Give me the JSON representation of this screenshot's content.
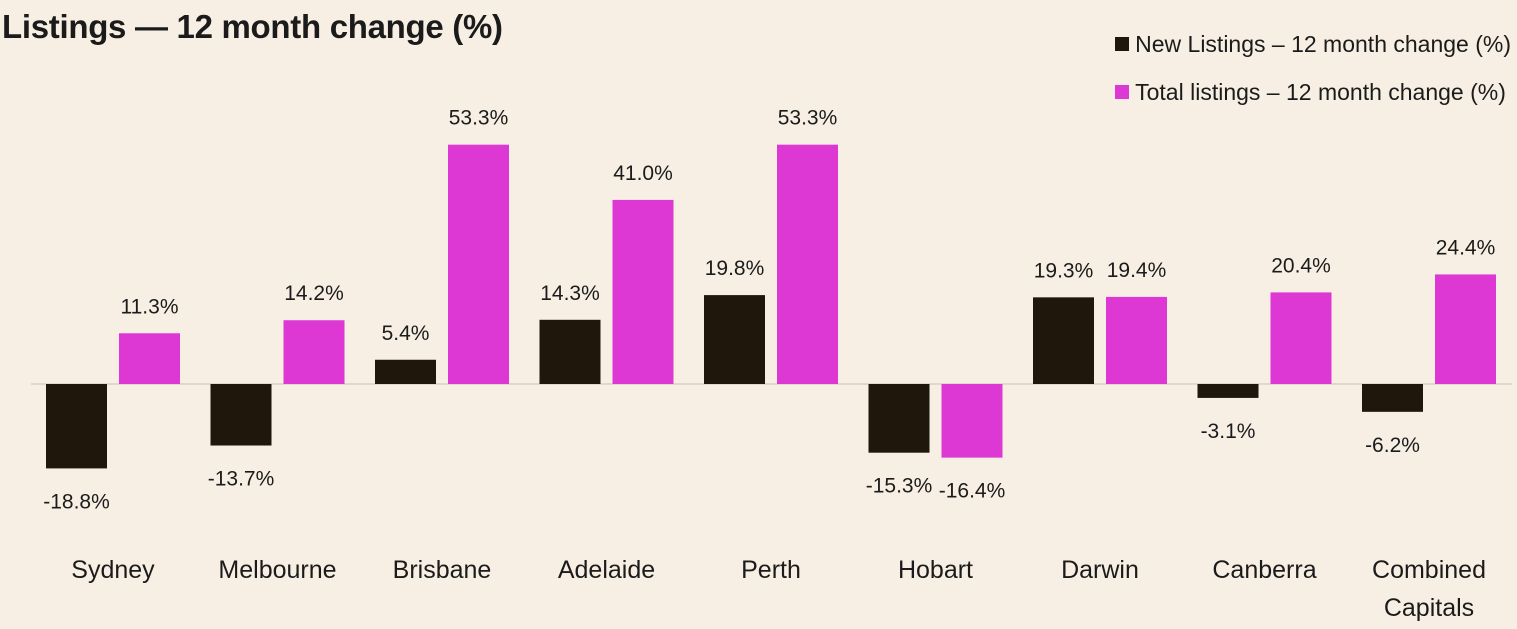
{
  "chart_data": {
    "type": "bar",
    "title": "Listings — 12 month change (%)",
    "xlabel": "",
    "ylabel": "",
    "ylim": [
      -25,
      60
    ],
    "grid": false,
    "legend_position": "top-right",
    "categories": [
      "Sydney",
      "Melbourne",
      "Brisbane",
      "Adelaide",
      "Perth",
      "Hobart",
      "Darwin",
      "Canberra",
      "Combined Capitals"
    ],
    "category_lines": [
      [
        "Sydney"
      ],
      [
        "Melbourne"
      ],
      [
        "Brisbane"
      ],
      [
        "Adelaide"
      ],
      [
        "Perth"
      ],
      [
        "Hobart"
      ],
      [
        "Darwin"
      ],
      [
        "Canberra"
      ],
      [
        "Combined",
        "Capitals"
      ]
    ],
    "series": [
      {
        "name": "New Listings – 12 month change (%)",
        "color": "#1f170b",
        "values": [
          -18.8,
          -13.7,
          5.4,
          14.3,
          19.8,
          -15.3,
          19.3,
          -3.1,
          -6.2
        ],
        "labels": [
          "-18.8%",
          "-13.7%",
          "5.4%",
          "14.3%",
          "19.8%",
          "-15.3%",
          "19.3%",
          "-3.1%",
          "-6.2%"
        ]
      },
      {
        "name": "Total listings – 12 month change (%)",
        "color": "#dd38d3",
        "values": [
          11.3,
          14.2,
          53.3,
          41.0,
          53.3,
          -16.4,
          19.4,
          20.4,
          24.4
        ],
        "labels": [
          "11.3%",
          "14.2%",
          "53.3%",
          "41.0%",
          "53.3%",
          "-16.4%",
          "19.4%",
          "20.4%",
          "24.4%"
        ]
      }
    ]
  }
}
